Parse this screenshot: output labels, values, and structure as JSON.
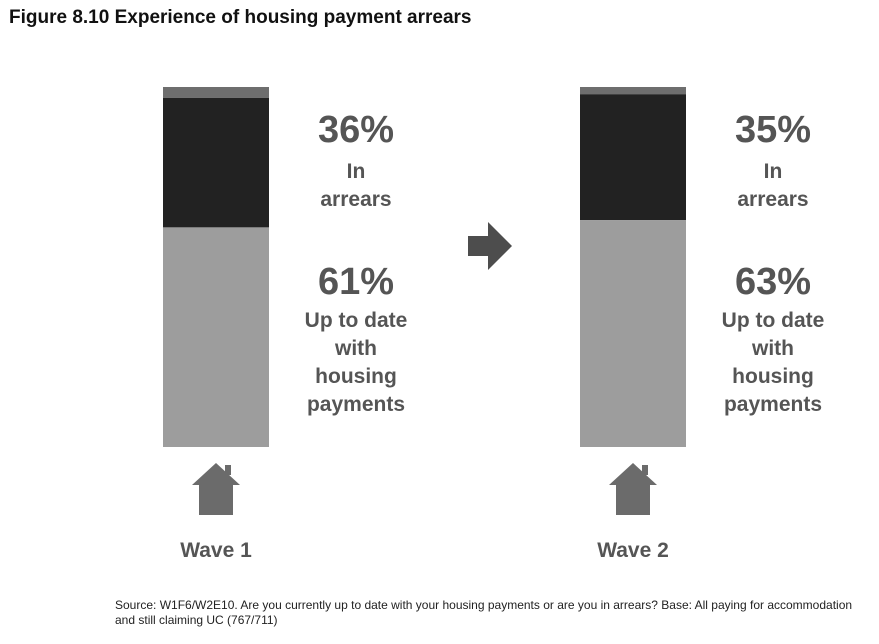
{
  "title": "Figure 8.10 Experience of housing payment arrears",
  "source": "Source: W1F6/W2E10. Are you currently up to date with your housing payments or are you in arrears? Base: All paying for accommodation and still claiming UC (767/711)",
  "colors": {
    "arrears": "#222222",
    "up_to_date": "#9d9d9d",
    "remainder": "#6e6e6e",
    "text": "#555555",
    "icon": "#6b6b6b"
  },
  "icons": [
    "house-icon",
    "arrow-right-icon"
  ],
  "chart_data": {
    "type": "bar",
    "stacked": true,
    "title": "Figure 8.10 Experience of housing payment arrears",
    "categories": [
      "Wave 1",
      "Wave 2"
    ],
    "series": [
      {
        "name": "In arrears",
        "values": [
          36,
          35
        ],
        "value_labels": [
          "36%",
          "35%"
        ]
      },
      {
        "name": "Up to date with housing payments",
        "values": [
          61,
          63
        ],
        "value_labels": [
          "61%",
          "63%"
        ]
      }
    ],
    "ylim": [
      0,
      100
    ]
  }
}
